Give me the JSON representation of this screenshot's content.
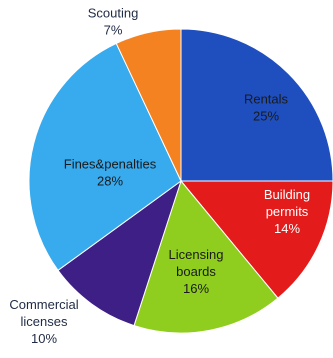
{
  "chart_data": {
    "type": "pie",
    "categories": [
      "Rentals",
      "Building permits",
      "Licensing boards",
      "Commercial licenses",
      "Fines&penalties",
      "Scouting"
    ],
    "values": [
      25,
      14,
      16,
      10,
      28,
      7
    ],
    "value_labels": [
      "25%",
      "14%",
      "16%",
      "10%",
      "28%",
      "7%"
    ],
    "label_lines": [
      [
        "Rentals"
      ],
      [
        "Building",
        "permits"
      ],
      [
        "Licensing",
        "boards"
      ],
      [
        "Commercial",
        "licenses"
      ],
      [
        "Fines&penalties"
      ],
      [
        "Scouting"
      ]
    ],
    "colors": [
      "#1f4fbf",
      "#e31b1b",
      "#8fce1e",
      "#3d1f86",
      "#38aaee",
      "#f58220"
    ],
    "start_angle_deg": 0,
    "direction": "clockwise",
    "legend": "none",
    "title": ""
  }
}
